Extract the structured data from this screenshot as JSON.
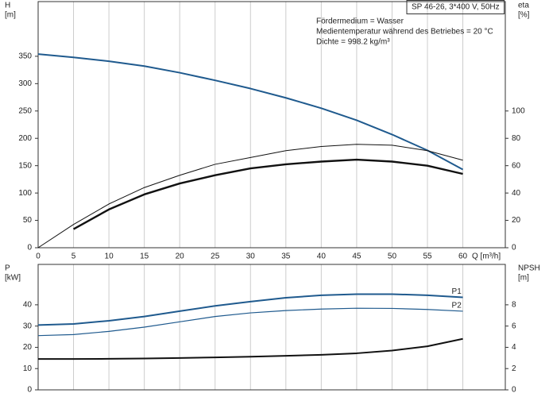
{
  "chart_data": [
    {
      "type": "line",
      "title": "SP 46-26, 3*400 V, 50Hz",
      "annotations": [
        "Fördermedium = Wasser",
        "Medientemperatur während des Betriebes = 20 °C",
        "Dichte = 998.2 kg/m³"
      ],
      "y_label": "H",
      "y_unit": "[m]",
      "y2_label": "eta",
      "y2_unit": "[%]",
      "x_label": "Q [m³/h]",
      "x": [
        0,
        5,
        10,
        15,
        20,
        25,
        30,
        35,
        40,
        45,
        50,
        55,
        60
      ],
      "xlim": [
        0,
        66
      ],
      "xticks": [
        0,
        5,
        10,
        15,
        20,
        25,
        30,
        35,
        40,
        45,
        50,
        55,
        60
      ],
      "ylim": [
        0,
        450
      ],
      "yticks": [
        0,
        50,
        100,
        150,
        200,
        250,
        300,
        350
      ],
      "y2lim": [
        0,
        180
      ],
      "y2ticks": [
        0,
        20,
        40,
        60,
        80,
        100
      ],
      "series": [
        {
          "color": "#1f5a8e",
          "width": 2,
          "values": [
            354,
            348,
            341,
            332,
            320,
            306,
            291,
            274,
            255,
            233,
            207,
            178,
            143
          ]
        },
        {
          "color": "#111111",
          "width": 1,
          "axis": "y2",
          "values": [
            0,
            17,
            32,
            44,
            53,
            61,
            66,
            71,
            74,
            75.6,
            75,
            71,
            64
          ]
        },
        {
          "color": "#111111",
          "width": 2.4,
          "axis": "y2",
          "values": [
            null,
            13.6,
            28,
            39,
            47,
            53,
            58,
            61,
            63,
            64.4,
            63,
            60,
            54
          ]
        }
      ]
    },
    {
      "type": "line",
      "y_label": "P",
      "y_unit": "[kW]",
      "y2_label": "NPSH",
      "y2_unit": "[m]",
      "x": [
        0,
        5,
        10,
        15,
        20,
        25,
        30,
        35,
        40,
        45,
        50,
        55,
        60
      ],
      "xlim": [
        0,
        66
      ],
      "xticks": [
        0,
        5,
        10,
        15,
        20,
        25,
        30,
        35,
        40,
        45,
        50,
        55,
        60
      ],
      "ylim": [
        0,
        59
      ],
      "yticks": [
        0,
        10,
        20,
        30,
        40
      ],
      "y2lim": [
        0,
        11.8
      ],
      "y2ticks": [
        0,
        2,
        4,
        6,
        8
      ],
      "series": [
        {
          "name": "P1",
          "color": "#1f5a8e",
          "width": 2,
          "values": [
            30.5,
            31,
            32.5,
            34.5,
            37,
            39.5,
            41.5,
            43.3,
            44.5,
            45,
            45,
            44.5,
            43.5
          ]
        },
        {
          "name": "P2",
          "color": "#1f5a8e",
          "width": 1.2,
          "values": [
            25.5,
            26,
            27.5,
            29.5,
            32,
            34.5,
            36.2,
            37.3,
            38,
            38.4,
            38.3,
            37.8,
            37
          ]
        },
        {
          "color": "#111111",
          "width": 2,
          "axis": "y2",
          "values": [
            2.9,
            2.9,
            2.92,
            2.95,
            3.0,
            3.05,
            3.12,
            3.2,
            3.3,
            3.44,
            3.7,
            4.1,
            4.8
          ]
        }
      ]
    }
  ]
}
